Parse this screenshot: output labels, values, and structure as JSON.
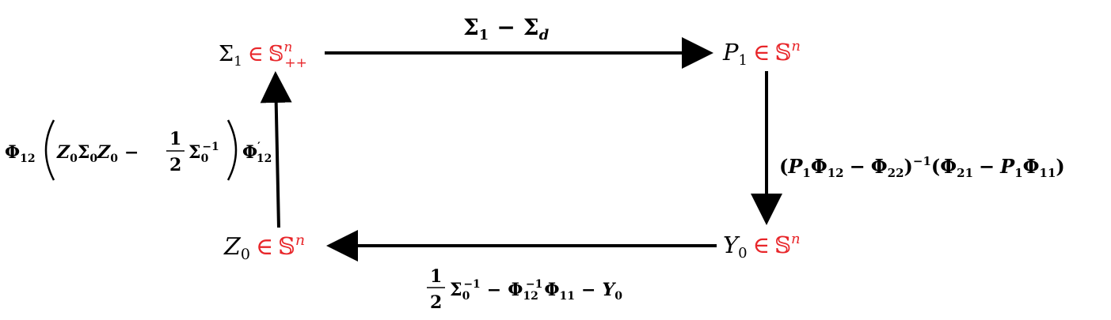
{
  "nodes": {
    "sigma1": {
      "symbol": "Σ",
      "sub": "1",
      "rel": "∈",
      "set": "𝕊",
      "set_sup": "n",
      "set_sub": "++"
    },
    "p1": {
      "symbol": "P",
      "sub": "1",
      "rel": "∈",
      "set": "𝕊",
      "set_sup": "n"
    },
    "y0": {
      "symbol": "Y",
      "sub": "0",
      "rel": "∈",
      "set": "𝕊",
      "set_sup": "n"
    },
    "z0": {
      "symbol": "Z",
      "sub": "0",
      "rel": "∈",
      "set": "𝕊",
      "set_sup": "n"
    }
  },
  "edges": {
    "top": {
      "a": "Σ",
      "a_sub": "1",
      "op": "−",
      "b": "Σ",
      "b_sub": "d"
    },
    "right": {
      "open1": "(",
      "p": "P",
      "p_sub": "1",
      "phi1": "Φ",
      "phi1_sub": "12",
      "minus1": "−",
      "phi2": "Φ",
      "phi2_sub": "22",
      "close1": ")",
      "pow": "−1",
      "open2": "(",
      "phi3": "Φ",
      "phi3_sub": "21",
      "minus2": "−",
      "p2": "P",
      "p2_sub": "1",
      "phi4": "Φ",
      "phi4_sub": "11",
      "close2": ")"
    },
    "bottom": {
      "num": "1",
      "den": "2",
      "sig": "Σ",
      "sig_sub": "0",
      "sig_sup": "−1",
      "minus1": "−",
      "phi": "Φ",
      "phi_sub": "12",
      "phi_sup": "−1",
      "phi2": "Φ",
      "phi2_sub": "11",
      "minus2": "−",
      "y": "Y",
      "y_sub": "0"
    },
    "left": {
      "phi": "Φ",
      "phi_sub": "12",
      "z": "Z",
      "z_sub": "0",
      "sig": "Σ",
      "sig_sub": "0",
      "z2": "Z",
      "z2_sub": "0",
      "minus": "−",
      "num": "1",
      "den": "2",
      "sig2": "Σ",
      "sig2_sub": "0",
      "sig2_sup": "−1",
      "phi2": "Φ",
      "phi2_sub": "12",
      "prime": "′"
    }
  },
  "colors": {
    "set_membership": "#e8262a",
    "arrows": "#000000"
  }
}
